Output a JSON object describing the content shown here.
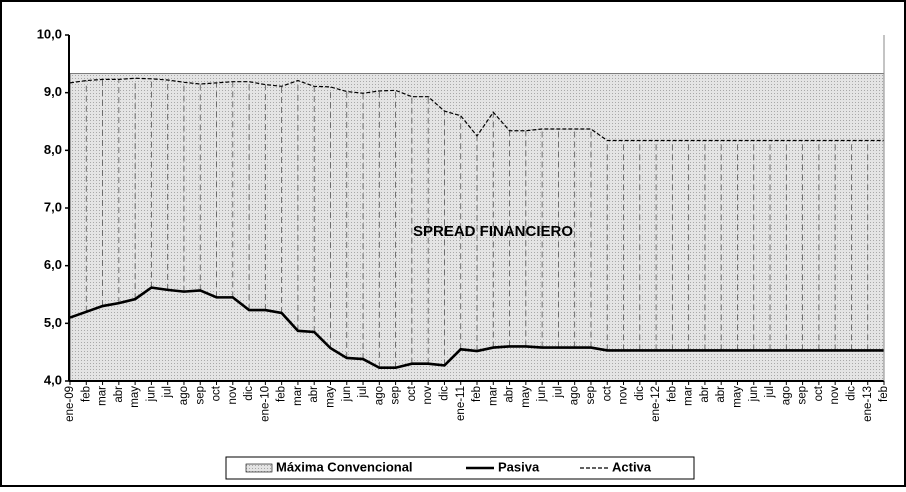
{
  "chart_data": {
    "type": "line",
    "annotation": "SPREAD FINANCIERO",
    "categories": [
      "ene-09",
      "feb",
      "mar",
      "abr",
      "may",
      "jun",
      "jul",
      "ago",
      "sep",
      "oct",
      "nov",
      "dic",
      "ene-10",
      "feb",
      "mar",
      "abr",
      "may",
      "jun",
      "jul",
      "ago",
      "sep",
      "oct",
      "nov",
      "dic",
      "ene-11",
      "feb",
      "mar",
      "abr",
      "may",
      "jun",
      "jul",
      "ago",
      "sep",
      "oct",
      "nov",
      "dic",
      "ene-12",
      "feb",
      "mar",
      "abr",
      "abr",
      "may",
      "jun",
      "jul",
      "ago",
      "sep",
      "oct",
      "nov",
      "dic",
      "ene-13",
      "feb"
    ],
    "series": [
      {
        "name": "Máxima Convencional",
        "color": "#d9d9d9",
        "values": [
          9.33,
          9.33,
          9.33,
          9.33,
          9.33,
          9.33,
          9.33,
          9.33,
          9.33,
          9.33,
          9.33,
          9.33,
          9.33,
          9.33,
          9.33,
          9.33,
          9.33,
          9.33,
          9.33,
          9.33,
          9.33,
          9.33,
          9.33,
          9.33,
          9.33,
          9.33,
          9.33,
          9.33,
          9.33,
          9.33,
          9.33,
          9.33,
          9.33,
          9.33,
          9.33,
          9.33,
          9.33,
          9.33,
          9.33,
          9.33,
          9.33,
          9.33,
          9.33,
          9.33,
          9.33,
          9.33,
          9.33,
          9.33,
          9.33,
          9.33,
          9.33
        ]
      },
      {
        "name": "Pasiva",
        "color": "#000000",
        "values": [
          5.1,
          5.2,
          5.3,
          5.35,
          5.42,
          5.62,
          5.58,
          5.55,
          5.57,
          5.45,
          5.45,
          5.23,
          5.23,
          5.18,
          4.87,
          4.85,
          4.57,
          4.4,
          4.38,
          4.23,
          4.23,
          4.3,
          4.3,
          4.27,
          4.55,
          4.52,
          4.58,
          4.6,
          4.6,
          4.58,
          4.58,
          4.58,
          4.58,
          4.53,
          4.53,
          4.53,
          4.53,
          4.53,
          4.53,
          4.53,
          4.53,
          4.53,
          4.53,
          4.53,
          4.53,
          4.53,
          4.53,
          4.53,
          4.53,
          4.53,
          4.53
        ]
      },
      {
        "name": "Activa",
        "color": "#000000",
        "values": [
          9.17,
          9.21,
          9.23,
          9.23,
          9.25,
          9.24,
          9.22,
          9.18,
          9.15,
          9.17,
          9.19,
          9.19,
          9.14,
          9.11,
          9.21,
          9.11,
          9.1,
          9.02,
          8.99,
          9.03,
          9.04,
          8.93,
          8.93,
          8.68,
          8.6,
          8.25,
          8.66,
          8.34,
          8.34,
          8.37,
          8.37,
          8.37,
          8.37,
          8.17,
          8.17,
          8.17,
          8.17,
          8.17,
          8.17,
          8.17,
          8.17,
          8.17,
          8.17,
          8.17,
          8.17,
          8.17,
          8.17,
          8.17,
          8.17,
          8.17,
          8.17
        ]
      }
    ],
    "ylim": [
      4,
      10
    ],
    "yticks": [
      {
        "value": 4,
        "label": "4,0"
      },
      {
        "value": 5,
        "label": "5,0"
      },
      {
        "value": 6,
        "label": "6,0"
      },
      {
        "value": 7,
        "label": "7,0"
      },
      {
        "value": 8,
        "label": "8,0"
      },
      {
        "value": 9,
        "label": "9,0"
      },
      {
        "value": 10,
        "label": "10,0"
      }
    ],
    "grid": false,
    "legend": "bottom"
  }
}
